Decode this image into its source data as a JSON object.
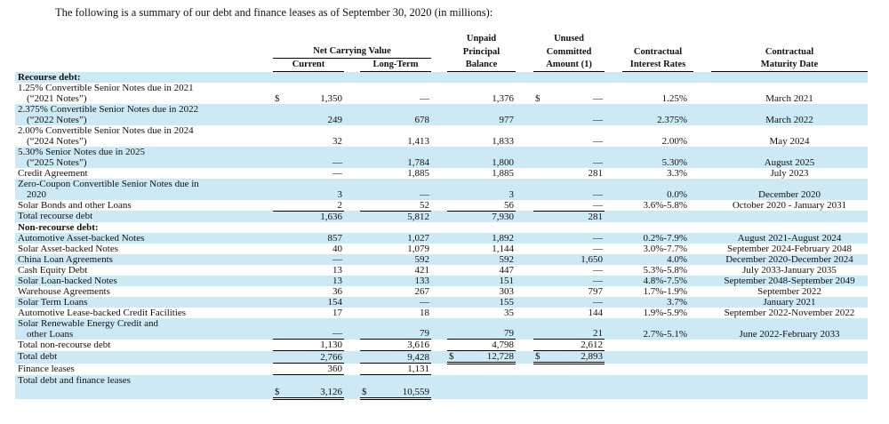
{
  "title": "The following is a summary of our debt and finance leases as of September 30, 2020 (in millions):",
  "colors": {
    "row_highlight": "#cde9f6",
    "text": "#111111",
    "line": "#000000"
  },
  "table": {
    "header": {
      "net_carrying_value": "Net Carrying Value",
      "current": "Current",
      "long_term": "Long-Term",
      "unpaid_l1": "Unpaid",
      "unpaid_l2": "Principal",
      "unpaid_l3": "Balance",
      "unused_l1": "Unused",
      "unused_l2": "Committed",
      "unused_l3": "Amount (1)",
      "rates_l1": "Contractual",
      "rates_l2": "Interest Rates",
      "maturity_l1": "Contractual",
      "maturity_l2": "Maturity Date"
    },
    "rows": [
      {
        "label": "Recourse debt:",
        "section": true,
        "bg": "blue"
      },
      {
        "label": "1.25% Convertible Senior Notes due in 2021",
        "label2": "(“2021 Notes”)",
        "bg": "white",
        "cur_sym": "$",
        "cur": "1,350",
        "lt": "—",
        "up": "1,376",
        "un_sym": "$",
        "un": "—",
        "rate": "1.25%",
        "maturity": "March 2021"
      },
      {
        "label": "2.375% Convertible Senior Notes due in 2022",
        "label2": "(“2022 Notes”)",
        "bg": "blue",
        "cur": "249",
        "lt": "678",
        "up": "977",
        "un": "—",
        "rate": "2.375%",
        "maturity": "March 2022"
      },
      {
        "label": "2.00% Convertible Senior Notes due in 2024",
        "label2": "(“2024 Notes”)",
        "bg": "white",
        "cur": "32",
        "lt": "1,413",
        "up": "1,833",
        "un": "—",
        "rate": "2.00%",
        "maturity": "May 2024"
      },
      {
        "label": "5.30% Senior Notes due in 2025",
        "label2": "(“2025 Notes”)",
        "bg": "blue",
        "cur": "—",
        "lt": "1,784",
        "up": "1,800",
        "un": "—",
        "rate": "5.30%",
        "maturity": "August 2025"
      },
      {
        "label": "Credit Agreement",
        "bg": "white",
        "cur": "—",
        "lt": "1,885",
        "up": "1,885",
        "un": "281",
        "rate": "3.3%",
        "maturity": "July 2023"
      },
      {
        "label": "Zero-Coupon Convertible Senior Notes due in",
        "label2": "2020",
        "bg": "blue",
        "cur": "3",
        "lt": "—",
        "up": "3",
        "un": "—",
        "rate": "0.0%",
        "maturity": "December 2020"
      },
      {
        "label": "Solar Bonds and other Loans",
        "bg": "white",
        "cur": "2",
        "lt": "52",
        "up": "56",
        "un": "—",
        "rate": "3.6%-5.8%",
        "maturity": "October 2020 - January 2031",
        "borders": {
          "cur": "s",
          "lt": "s",
          "up": "s",
          "un": "s"
        }
      },
      {
        "label": "Total recourse debt",
        "bg": "blue",
        "cur": "1,636",
        "lt": "5,812",
        "up": "7,930",
        "un": "281"
      },
      {
        "label": "Non-recourse debt:",
        "section": true,
        "bg": "white"
      },
      {
        "label": "Automotive Asset-backed Notes",
        "bg": "blue",
        "cur": "857",
        "lt": "1,027",
        "up": "1,892",
        "un": "—",
        "rate": "0.2%-7.9%",
        "maturity": "August 2021-August 2024"
      },
      {
        "label": "Solar Asset-backed Notes",
        "bg": "white",
        "cur": "40",
        "lt": "1,079",
        "up": "1,144",
        "un": "—",
        "rate": "3.0%-7.7%",
        "maturity": "September 2024-February 2048"
      },
      {
        "label": "China Loan Agreements",
        "bg": "blue",
        "cur": "—",
        "lt": "592",
        "up": "592",
        "un": "1,650",
        "rate": "4.0%",
        "maturity": "December 2020-December 2024"
      },
      {
        "label": "Cash Equity Debt",
        "bg": "white",
        "cur": "13",
        "lt": "421",
        "up": "447",
        "un": "—",
        "rate": "5.3%-5.8%",
        "maturity": "July 2033-January 2035"
      },
      {
        "label": "Solar Loan-backed Notes",
        "bg": "blue",
        "cur": "13",
        "lt": "133",
        "up": "151",
        "un": "—",
        "rate": "4.8%-7.5%",
        "maturity": "September 2048-September 2049"
      },
      {
        "label": "Warehouse Agreements",
        "bg": "white",
        "cur": "36",
        "lt": "267",
        "up": "303",
        "un": "797",
        "rate": "1.7%-1.9%",
        "maturity": "September 2022"
      },
      {
        "label": "Solar Term Loans",
        "bg": "blue",
        "cur": "154",
        "lt": "—",
        "up": "155",
        "un": "—",
        "rate": "3.7%",
        "maturity": "January 2021"
      },
      {
        "label": "Automotive Lease-backed Credit Facilities",
        "bg": "white",
        "cur": "17",
        "lt": "18",
        "up": "35",
        "un": "144",
        "rate": "1.9%-5.9%",
        "maturity": "September 2022-November 2022"
      },
      {
        "label": "Solar Renewable Energy Credit and",
        "label2": "other Loans",
        "bg": "blue",
        "cur": "—",
        "lt": "79",
        "up": "79",
        "un": "21",
        "rate": "2.7%-5.1%",
        "maturity": "June 2022-February 2033",
        "borders": {
          "cur": "s",
          "lt": "s",
          "up": "s",
          "un": "s"
        }
      },
      {
        "label": "Total non-recourse debt",
        "bg": "white",
        "cur": "1,130",
        "lt": "3,616",
        "up": "4,798",
        "un": "2,612",
        "borders": {
          "cur": "s",
          "lt": "s",
          "up": "s",
          "un": "s"
        }
      },
      {
        "label": "Total debt",
        "bg": "blue",
        "cur": "2,766",
        "lt": "9,428",
        "up_sym": "$",
        "up": "12,728",
        "un_sym": "$",
        "un": "2,893",
        "borders": {
          "cur": "s",
          "lt": "s",
          "up": "d",
          "un": "d"
        }
      },
      {
        "label": "Finance leases",
        "bg": "white",
        "cur": "360",
        "lt": "1,131",
        "borders": {
          "cur": "s",
          "lt": "s"
        }
      },
      {
        "label": "Total debt and finance leases",
        "bg": "blue",
        "tall": true,
        "cur_sym": "$",
        "cur": "3,126",
        "lt_sym": "$",
        "lt": "10,559",
        "borders": {
          "cur": "d",
          "lt": "d"
        }
      }
    ]
  }
}
